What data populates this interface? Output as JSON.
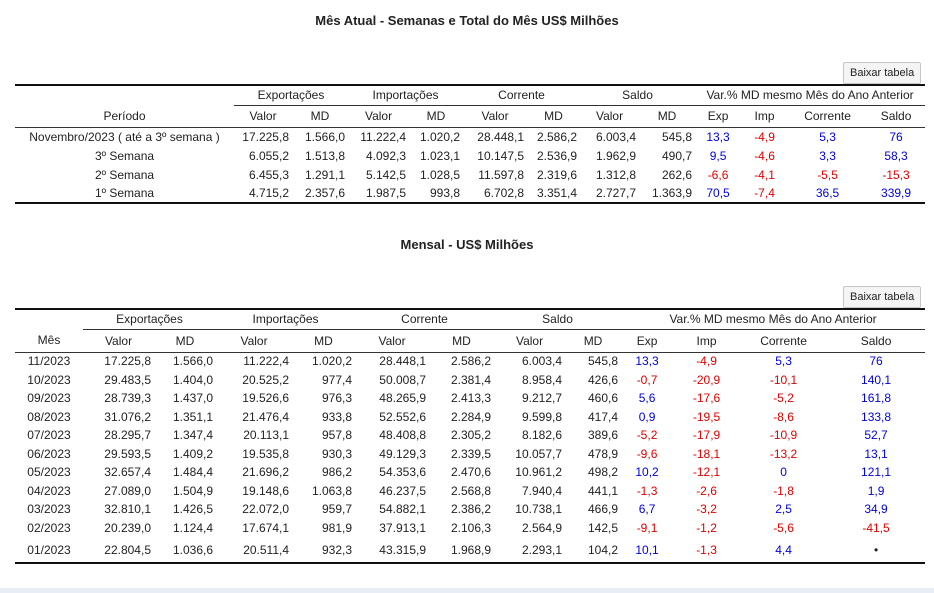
{
  "section1": {
    "title": "Mês Atual - Semanas e Total do Mês US$ Milhões",
    "download_label": "Baixar tabela",
    "group_headers": [
      "Exportações",
      "Importações",
      "Corrente",
      "Saldo",
      "Var.% MD mesmo Mês do Ano Anterior"
    ],
    "sub_headers": [
      "Período",
      "Valor",
      "MD",
      "Valor",
      "MD",
      "Valor",
      "MD",
      "Valor",
      "MD",
      "Exp",
      "Imp",
      "Corrente",
      "Saldo"
    ],
    "rows": [
      [
        "Novembro/2023 ( até a 3º semana )",
        "17.225,8",
        "1.566,0",
        "11.222,4",
        "1.020,2",
        "28.448,1",
        "2.586,2",
        "6.003,4",
        "545,8",
        "13,3",
        "-4,9",
        "5,3",
        "76"
      ],
      [
        "3º Semana",
        "6.055,2",
        "1.513,8",
        "4.092,3",
        "1.023,1",
        "10.147,5",
        "2.536,9",
        "1.962,9",
        "490,7",
        "9,5",
        "-4,6",
        "3,3",
        "58,3"
      ],
      [
        "2º Semana",
        "6.455,3",
        "1.291,1",
        "5.142,5",
        "1.028,5",
        "11.597,8",
        "2.319,6",
        "1.312,8",
        "262,6",
        "-6,6",
        "-4,1",
        "-5,5",
        "-15,3"
      ],
      [
        "1º Semana",
        "4.715,2",
        "2.357,6",
        "1.987,5",
        "993,8",
        "6.702,8",
        "3.351,4",
        "2.727,7",
        "1.363,9",
        "70,5",
        "-7,4",
        "36,5",
        "339,9"
      ]
    ]
  },
  "section2": {
    "title": "Mensal - US$ Milhões",
    "download_label": "Baixar tabela",
    "group_headers": [
      "Exportações",
      "Importações",
      "Corrente",
      "Saldo",
      "Var.% MD mesmo Mês do Ano Anterior"
    ],
    "sub_headers": [
      "Mês",
      "Valor",
      "MD",
      "Valor",
      "MD",
      "Valor",
      "MD",
      "Valor",
      "MD",
      "Exp",
      "Imp",
      "Corrente",
      "Saldo"
    ],
    "rows": [
      [
        "11/2023",
        "17.225,8",
        "1.566,0",
        "11.222,4",
        "1.020,2",
        "28.448,1",
        "2.586,2",
        "6.003,4",
        "545,8",
        "13,3",
        "-4,9",
        "5,3",
        "76"
      ],
      [
        "10/2023",
        "29.483,5",
        "1.404,0",
        "20.525,2",
        "977,4",
        "50.008,7",
        "2.381,4",
        "8.958,4",
        "426,6",
        "-0,7",
        "-20,9",
        "-10,1",
        "140,1"
      ],
      [
        "09/2023",
        "28.739,3",
        "1.437,0",
        "19.526,6",
        "976,3",
        "48.265,9",
        "2.413,3",
        "9.212,7",
        "460,6",
        "5,6",
        "-17,6",
        "-5,2",
        "161,8"
      ],
      [
        "08/2023",
        "31.076,2",
        "1.351,1",
        "21.476,4",
        "933,8",
        "52.552,6",
        "2.284,9",
        "9.599,8",
        "417,4",
        "0,9",
        "-19,5",
        "-8,6",
        "133,8"
      ],
      [
        "07/2023",
        "28.295,7",
        "1.347,4",
        "20.113,1",
        "957,8",
        "48.408,8",
        "2.305,2",
        "8.182,6",
        "389,6",
        "-5,2",
        "-17,9",
        "-10,9",
        "52,7"
      ],
      [
        "06/2023",
        "29.593,5",
        "1.409,2",
        "19.535,8",
        "930,3",
        "49.129,3",
        "2.339,5",
        "10.057,7",
        "478,9",
        "-9,6",
        "-18,1",
        "-13,2",
        "13,1"
      ],
      [
        "05/2023",
        "32.657,4",
        "1.484,4",
        "21.696,2",
        "986,2",
        "54.353,6",
        "2.470,6",
        "10.961,2",
        "498,2",
        "10,2",
        "-12,1",
        "0",
        "121,1"
      ],
      [
        "04/2023",
        "27.089,0",
        "1.504,9",
        "19.148,6",
        "1.063,8",
        "46.237,5",
        "2.568,8",
        "7.940,4",
        "441,1",
        "-1,3",
        "-2,6",
        "-1,8",
        "1,9"
      ],
      [
        "03/2023",
        "32.810,1",
        "1.426,5",
        "22.072,0",
        "959,7",
        "54.882,1",
        "2.386,2",
        "10.738,1",
        "466,9",
        "6,7",
        "-3,2",
        "2,5",
        "34,9"
      ],
      [
        "02/2023",
        "20.239,0",
        "1.124,4",
        "17.674,1",
        "981,9",
        "37.913,1",
        "2.106,3",
        "2.564,9",
        "142,5",
        "-9,1",
        "-1,2",
        "-5,6",
        "-41,5"
      ],
      [
        "01/2023",
        "22.804,5",
        "1.036,6",
        "20.511,4",
        "932,3",
        "43.315,9",
        "1.968,9",
        "2.293,1",
        "104,2",
        "10,1",
        "-1,3",
        "4,4",
        "•"
      ]
    ]
  }
}
